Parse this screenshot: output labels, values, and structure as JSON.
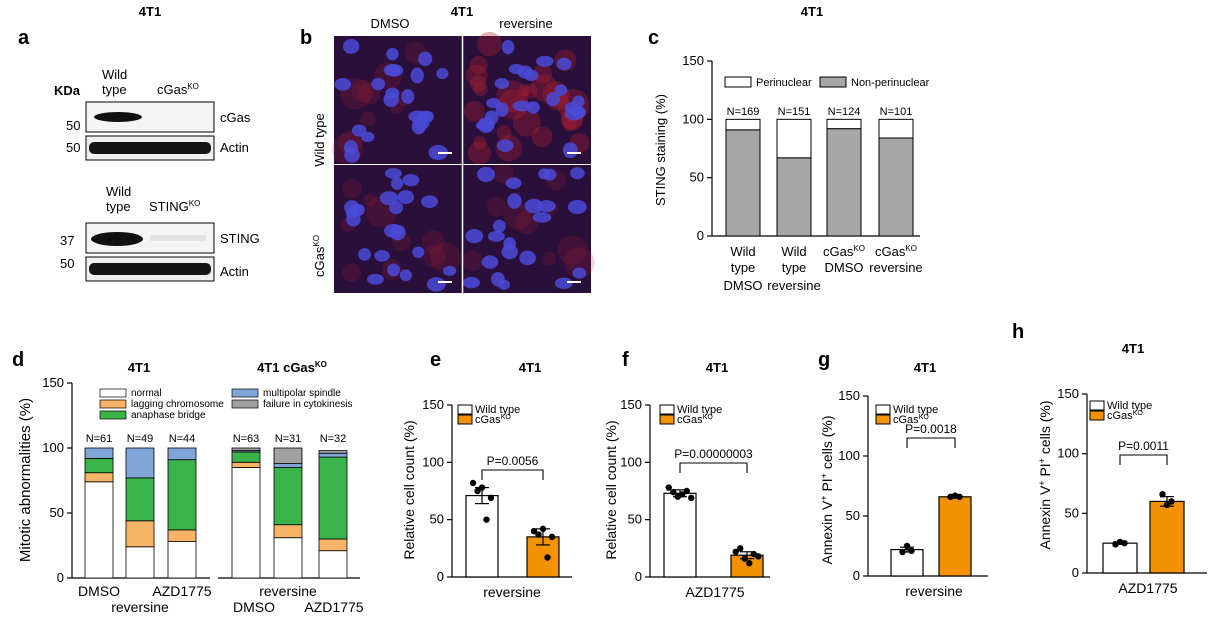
{
  "cell_line": "4T1",
  "panel_letters": [
    "a",
    "b",
    "c",
    "d",
    "e",
    "f",
    "g",
    "h"
  ],
  "colors": {
    "orange": "#f39200",
    "green": "#3ab34a",
    "light_orange": "#f7b366",
    "blue": "#7fa6d6",
    "grey": "#a0a0a0",
    "bar_grey": "#a6a6a6",
    "micro_bg": "#2a0f3a",
    "nucleus": "#4a4ad8"
  },
  "panel_a": {
    "kda_label": "KDa",
    "blot1": {
      "col1_line1": "Wild",
      "col1_line2": "type",
      "col2": "cGas",
      "col2_sup": "KO",
      "rows": [
        {
          "mw": "50",
          "protein": "cGas"
        },
        {
          "mw": "50",
          "protein": "Actin"
        }
      ]
    },
    "blot2": {
      "col1_line1": "Wild",
      "col1_line2": "type",
      "col2": "STING",
      "col2_sup": "KO",
      "rows": [
        {
          "mw": "37",
          "protein": "STING"
        },
        {
          "mw": "50",
          "protein": "Actin"
        }
      ]
    }
  },
  "panel_b": {
    "col_labels": [
      "DMSO",
      "reversine"
    ],
    "row_labels": [
      "Wild type",
      "cGas"
    ],
    "row2_sup": "KO"
  },
  "chart_data": [
    {
      "panel": "c",
      "type": "bar",
      "title": "4T1",
      "ylabel": "STING staining (%)",
      "ylim": [
        0,
        150
      ],
      "yticks": [
        0,
        50,
        100,
        150
      ],
      "categories": [
        {
          "l1": "Wild",
          "l2": "type",
          "l3": "DMSO"
        },
        {
          "l1": "Wild",
          "l2": "type",
          "l3": "reversine"
        },
        {
          "l1": "cGas",
          "sup": "KO",
          "l2": "DMSO"
        },
        {
          "l1": "cGas",
          "sup": "KO",
          "l2": "reversine"
        }
      ],
      "n_labels": [
        "N=169",
        "N=151",
        "N=124",
        "N=101"
      ],
      "series": [
        {
          "name": "Non-perinuclear",
          "values": [
            91,
            67,
            92,
            84
          ]
        },
        {
          "name": "Perinuclear",
          "values": [
            9,
            33,
            8,
            16
          ]
        }
      ],
      "legend": [
        "Perinuclear",
        "Non-perinuclear"
      ]
    },
    {
      "panel": "d",
      "type": "bar",
      "ylabel": "Mitotic abnormalities (%)",
      "ylim": [
        0,
        150
      ],
      "yticks": [
        0,
        50,
        100,
        150
      ],
      "group_titles": [
        "4T1",
        "4T1 cGas"
      ],
      "group_title_sup": "KO",
      "x_labels_row1": [
        "DMSO",
        "AZD1775",
        "DMSO",
        "AZD1775"
      ],
      "x_labels_row2": [
        "reversine",
        "reversine"
      ],
      "n_labels": [
        "N=61",
        "N=49",
        "N=44",
        "N=63",
        "N=31",
        "N=32"
      ],
      "legend": [
        "normal",
        "lagging chromosome",
        "anaphase bridge",
        "multipolar spindle",
        "failure in cytokinesis"
      ],
      "series": [
        {
          "name": "normal",
          "values": [
            74,
            24,
            28,
            85,
            31,
            21
          ]
        },
        {
          "name": "lagging chromosome",
          "values": [
            7,
            20,
            9,
            4,
            10,
            9
          ]
        },
        {
          "name": "anaphase bridge",
          "values": [
            11,
            33,
            54,
            8,
            44,
            63
          ]
        },
        {
          "name": "multipolar spindle",
          "values": [
            8,
            23,
            9,
            1,
            3,
            3
          ]
        },
        {
          "name": "failure in cytokinesis",
          "values": [
            0,
            0,
            0,
            2,
            12,
            2
          ]
        }
      ]
    },
    {
      "panel": "e",
      "type": "bar",
      "title": "4T1",
      "ylabel": "Relative cell count (%)",
      "xlabel": "reversine",
      "ylim": [
        0,
        150
      ],
      "yticks": [
        0,
        50,
        100,
        150
      ],
      "legend": [
        {
          "text": "Wild type"
        },
        {
          "text": "cGas",
          "sup": "KO"
        }
      ],
      "pvalue": "P=0.0056",
      "series": [
        {
          "mean": 71,
          "err": 7,
          "points": [
            82,
            75,
            78,
            50,
            69
          ]
        },
        {
          "mean": 35,
          "err": 7,
          "points": [
            40,
            37,
            42,
            17,
            35
          ]
        }
      ]
    },
    {
      "panel": "f",
      "type": "bar",
      "title": "4T1",
      "ylabel": "Relative cell count (%)",
      "xlabel": "AZD1775",
      "ylim": [
        0,
        150
      ],
      "yticks": [
        0,
        50,
        100,
        150
      ],
      "legend": [
        {
          "text": "Wild type"
        },
        {
          "text": "cGas",
          "sup": "KO"
        }
      ],
      "pvalue": "P=0.00000003",
      "series": [
        {
          "mean": 73,
          "err": 3,
          "points": [
            78,
            74,
            70,
            72,
            75,
            69
          ]
        },
        {
          "mean": 19,
          "err": 3,
          "points": [
            22,
            25,
            16,
            12,
            20,
            18
          ]
        }
      ]
    },
    {
      "panel": "g",
      "type": "bar",
      "title": "4T1",
      "ylabel_main": "Annexin V",
      "ylabel_mid": " PI",
      "ylabel_end": " cells  (%)",
      "xlabel": "reversine",
      "ylim": [
        0,
        150
      ],
      "yticks": [
        0,
        50,
        100,
        150
      ],
      "legend": [
        {
          "text": "Wild type"
        },
        {
          "text": "cGas",
          "sup": "KO"
        }
      ],
      "pvalue": "P=0.0018",
      "series": [
        {
          "mean": 22,
          "err": 2,
          "points": [
            20,
            25,
            21
          ]
        },
        {
          "mean": 66,
          "err": 1,
          "points": [
            66,
            67,
            66
          ]
        }
      ]
    },
    {
      "panel": "h",
      "type": "bar",
      "title": "4T1",
      "ylabel_main": "Annexin V",
      "ylabel_mid": " PI",
      "ylabel_end": " cells  (%)",
      "xlabel": "AZD1775",
      "ylim": [
        0,
        150
      ],
      "yticks": [
        0,
        50,
        100,
        150
      ],
      "legend": [
        {
          "text": "Wild type"
        },
        {
          "text": "cGas",
          "sup": "KO"
        }
      ],
      "pvalue": "P=0.0011",
      "series": [
        {
          "mean": 25,
          "err": 1,
          "points": [
            24,
            26,
            25
          ]
        },
        {
          "mean": 60,
          "err": 4,
          "points": [
            66,
            57,
            60
          ]
        }
      ]
    }
  ]
}
